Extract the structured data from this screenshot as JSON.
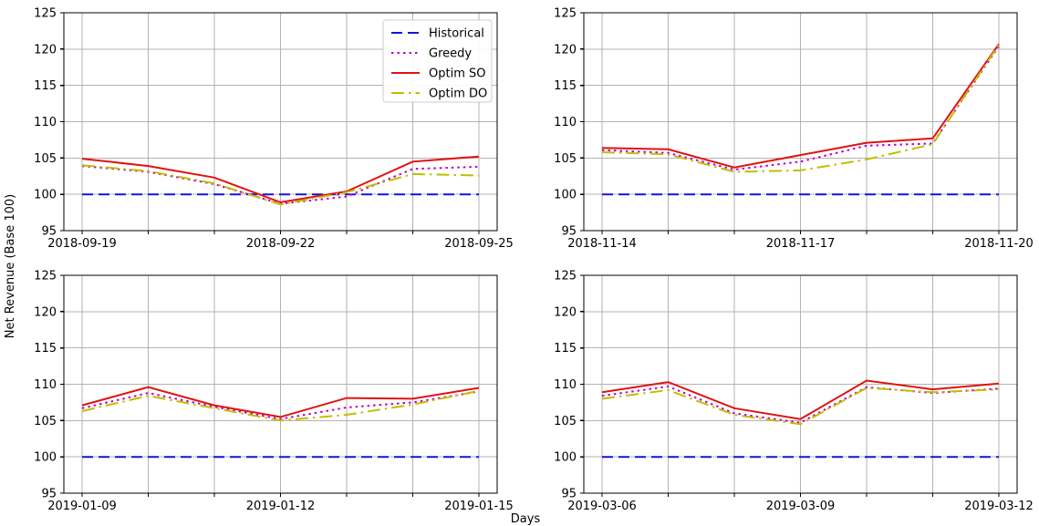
{
  "figure": {
    "ylabel": "Net Revenue (Base 100)",
    "xlabel": "Days",
    "background_color": "#ffffff",
    "grid_color": "#b3b3b3",
    "spine_color": "#000000",
    "text_color": "#000000"
  },
  "legend": {
    "labels": [
      "Historical",
      "Greedy",
      "Optim SO",
      "Optim DO"
    ],
    "position": "upper right of first subplot",
    "border_color": "#cccccc"
  },
  "series_colors": {
    "historical": "#1414d4",
    "greedy": "#bf00bf",
    "optim_so": "#e01212",
    "optim_do": "#bfbf00"
  },
  "chart_data": [
    {
      "type": "line",
      "grid": true,
      "ylim": [
        95,
        125
      ],
      "yticks": [
        95,
        100,
        105,
        110,
        115,
        120,
        125
      ],
      "x": [
        "2018-09-19",
        "2018-09-20",
        "2018-09-21",
        "2018-09-22",
        "2018-09-23",
        "2018-09-24",
        "2018-09-25"
      ],
      "xtick_indices": [
        0,
        3,
        6
      ],
      "xtick_labels": [
        "2018-09-19",
        "2018-09-22",
        "2018-09-25"
      ],
      "show_legend": true,
      "series": [
        {
          "name": "Historical",
          "color": "#1414d4",
          "dash": "dashed",
          "values": [
            100,
            100,
            100,
            100,
            100,
            100,
            100
          ]
        },
        {
          "name": "Greedy",
          "color": "#bf00bf",
          "dash": "dotted",
          "values": [
            103.9,
            103.1,
            101.4,
            98.7,
            99.7,
            103.5,
            103.8
          ]
        },
        {
          "name": "Optim SO",
          "color": "#e01212",
          "dash": "solid",
          "values": [
            104.9,
            103.9,
            102.3,
            98.9,
            100.4,
            104.5,
            105.2
          ]
        },
        {
          "name": "Optim DO",
          "color": "#bfbf00",
          "dash": "dashdot",
          "values": [
            104.0,
            103.2,
            101.5,
            98.6,
            100.3,
            102.8,
            102.6
          ]
        }
      ]
    },
    {
      "type": "line",
      "grid": true,
      "ylim": [
        95,
        125
      ],
      "yticks": [
        95,
        100,
        105,
        110,
        115,
        120,
        125
      ],
      "x": [
        "2018-11-14",
        "2018-11-15",
        "2018-11-16",
        "2018-11-17",
        "2018-11-18",
        "2018-11-19",
        "2018-11-20"
      ],
      "xtick_indices": [
        0,
        3,
        6
      ],
      "xtick_labels": [
        "2018-11-14",
        "2018-11-17",
        "2018-11-20"
      ],
      "show_legend": false,
      "series": [
        {
          "name": "Historical",
          "color": "#1414d4",
          "dash": "dashed",
          "values": [
            100,
            100,
            100,
            100,
            100,
            100,
            100
          ]
        },
        {
          "name": "Greedy",
          "color": "#bf00bf",
          "dash": "dotted",
          "values": [
            106.1,
            105.7,
            103.4,
            104.5,
            106.7,
            107.0,
            120.4
          ]
        },
        {
          "name": "Optim SO",
          "color": "#e01212",
          "dash": "solid",
          "values": [
            106.4,
            106.2,
            103.7,
            105.4,
            107.1,
            107.7,
            120.7
          ]
        },
        {
          "name": "Optim DO",
          "color": "#bfbf00",
          "dash": "dashdot",
          "values": [
            105.8,
            105.5,
            103.1,
            103.3,
            104.8,
            106.9,
            120.6
          ]
        }
      ]
    },
    {
      "type": "line",
      "grid": true,
      "ylim": [
        95,
        125
      ],
      "yticks": [
        95,
        100,
        105,
        110,
        115,
        120,
        125
      ],
      "x": [
        "2019-01-09",
        "2019-01-10",
        "2019-01-11",
        "2019-01-12",
        "2019-01-13",
        "2019-01-14",
        "2019-01-15"
      ],
      "xtick_indices": [
        0,
        3,
        6
      ],
      "xtick_labels": [
        "2019-01-09",
        "2019-01-12",
        "2019-01-15"
      ],
      "show_legend": false,
      "series": [
        {
          "name": "Historical",
          "color": "#1414d4",
          "dash": "dashed",
          "values": [
            100,
            100,
            100,
            100,
            100,
            100,
            100
          ]
        },
        {
          "name": "Greedy",
          "color": "#bf00bf",
          "dash": "dotted",
          "values": [
            106.7,
            108.8,
            106.9,
            105.2,
            106.8,
            107.5,
            109.0
          ]
        },
        {
          "name": "Optim SO",
          "color": "#e01212",
          "dash": "solid",
          "values": [
            107.1,
            109.6,
            107.1,
            105.5,
            108.1,
            108.0,
            109.5
          ]
        },
        {
          "name": "Optim DO",
          "color": "#bfbf00",
          "dash": "dashdot",
          "values": [
            106.3,
            108.4,
            106.7,
            105.0,
            105.8,
            107.2,
            109.1
          ]
        }
      ]
    },
    {
      "type": "line",
      "grid": true,
      "ylim": [
        95,
        125
      ],
      "yticks": [
        95,
        100,
        105,
        110,
        115,
        120,
        125
      ],
      "x": [
        "2019-03-06",
        "2019-03-07",
        "2019-03-08",
        "2019-03-09",
        "2019-03-10",
        "2019-03-11",
        "2019-03-12"
      ],
      "xtick_indices": [
        0,
        3,
        6
      ],
      "xtick_labels": [
        "2019-03-06",
        "2019-03-09",
        "2019-03-12"
      ],
      "show_legend": false,
      "series": [
        {
          "name": "Historical",
          "color": "#1414d4",
          "dash": "dashed",
          "values": [
            100,
            100,
            100,
            100,
            100,
            100,
            100
          ]
        },
        {
          "name": "Greedy",
          "color": "#bf00bf",
          "dash": "dotted",
          "values": [
            108.4,
            109.7,
            106.0,
            104.7,
            109.6,
            108.8,
            109.4
          ]
        },
        {
          "name": "Optim SO",
          "color": "#e01212",
          "dash": "solid",
          "values": [
            108.9,
            110.3,
            106.7,
            105.2,
            110.5,
            109.3,
            110.1
          ]
        },
        {
          "name": "Optim DO",
          "color": "#bfbf00",
          "dash": "dashdot",
          "values": [
            108.0,
            109.2,
            105.8,
            104.5,
            109.5,
            108.9,
            109.3
          ]
        }
      ]
    }
  ]
}
